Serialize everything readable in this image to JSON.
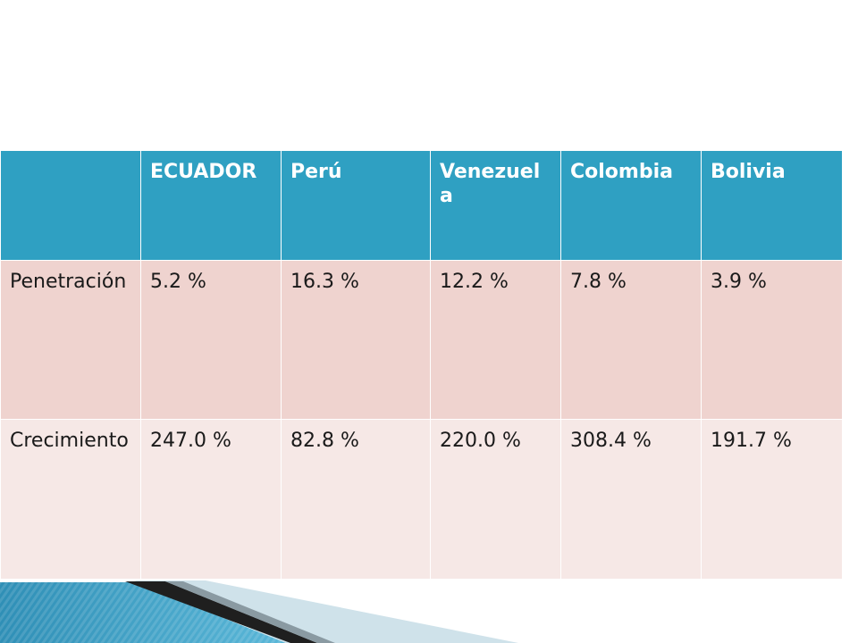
{
  "table": {
    "header": [
      "",
      "ECUADOR",
      "Perú",
      "Venezuela",
      "Colombia",
      "Bolivia"
    ],
    "rows": [
      [
        "Penetración",
        "5.2 %",
        "16.3 %",
        "12.2 %",
        "7.8 %",
        "3.9 %"
      ],
      [
        "Crecimiento",
        "247.0 %",
        "82.8 %",
        "220.0 %",
        "308.4 %",
        "191.7 %"
      ]
    ]
  },
  "colors": {
    "header_bg": "#2fa0c2",
    "row1_bg": "#efd3cf",
    "row2_bg": "#f6e8e6",
    "accent_band": "#2f8fb6"
  }
}
